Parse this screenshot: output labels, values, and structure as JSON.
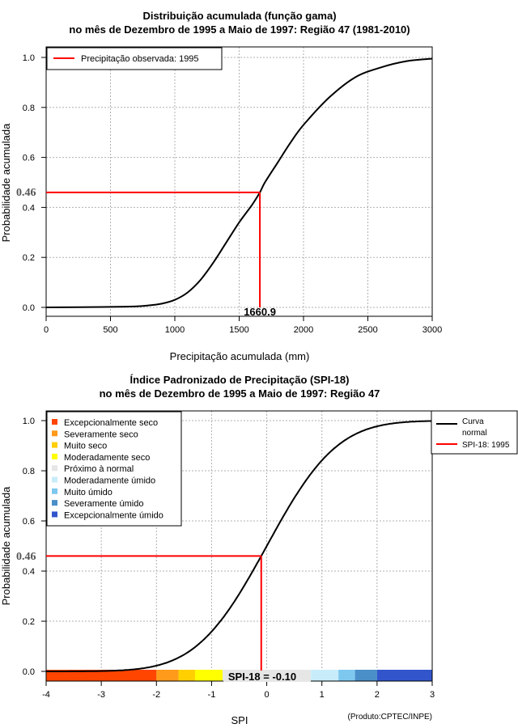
{
  "chart_data": [
    {
      "type": "line",
      "title": "Distribuição acumulada (função gama)",
      "subtitle": "no mês de Dezembro de 1995 a Maio de 1997: Região 47 (1981-2010)",
      "xlabel": "Precipitação acumulada (mm)",
      "ylabel": "Probabilidade acumulada",
      "xlim": [
        0,
        3000
      ],
      "ylim": [
        0,
        1
      ],
      "grid": true,
      "x_ticks": [
        "0",
        "500",
        "1000",
        "1500",
        "2000",
        "2500",
        "3000"
      ],
      "y_ticks": [
        "0.0",
        "0.2",
        "0.4",
        "0.6",
        "0.8",
        "1.0"
      ],
      "legend": [
        "Precipitação observada: 1995"
      ],
      "legend_position": "top-left",
      "observed_x": 1660.9,
      "observed_prob": 0.46,
      "observed_x_label": "1660.9",
      "observed_prob_label": "0.46",
      "curve": {
        "x": [
          0,
          500,
          700,
          800,
          900,
          1000,
          1100,
          1200,
          1300,
          1400,
          1500,
          1600,
          1660.9,
          1700,
          1800,
          1900,
          2000,
          2200,
          2400,
          2600,
          2800,
          3000
        ],
        "y": [
          0.0,
          0.002,
          0.004,
          0.008,
          0.015,
          0.03,
          0.06,
          0.11,
          0.18,
          0.26,
          0.34,
          0.41,
          0.46,
          0.5,
          0.58,
          0.66,
          0.73,
          0.84,
          0.92,
          0.96,
          0.985,
          0.995
        ]
      }
    },
    {
      "type": "line",
      "title": "Índice Padronizado de Precipitação (SPI-18)",
      "subtitle": "no mês de Dezembro de 1995 a Maio de 1997: Região 47",
      "xlabel": "SPI",
      "ylabel": "Probabilidade acumulada",
      "xlim": [
        -4,
        3
      ],
      "ylim": [
        0,
        1
      ],
      "grid": true,
      "x_ticks": [
        "-4",
        "-3",
        "-2",
        "-1",
        "0",
        "1",
        "2",
        "3"
      ],
      "y_ticks": [
        "0.0",
        "0.2",
        "0.4",
        "0.6",
        "0.8",
        "1.0"
      ],
      "legend_categories": [
        {
          "label": "Excepcionalmente seco",
          "color": "#ff4500"
        },
        {
          "label": "Severamente seco",
          "color": "#ff9a1a"
        },
        {
          "label": "Muito seco",
          "color": "#ffcf00"
        },
        {
          "label": "Moderadamente seco",
          "color": "#ffff00"
        },
        {
          "label": "Próximo à normal",
          "color": "#e6e6e6"
        },
        {
          "label": "Moderadamente úmido",
          "color": "#c8ecfa"
        },
        {
          "label": "Muito úmido",
          "color": "#7ec8f0"
        },
        {
          "label": "Severamente úmido",
          "color": "#4a8fc8"
        },
        {
          "label": "Excepcionalmente úmido",
          "color": "#3355cc"
        }
      ],
      "legend_series": [
        "Curva\nnormal",
        "SPI-18: 1995"
      ],
      "legend_series_lines": [
        "Curva",
        "normal",
        "SPI-18: 1995"
      ],
      "spi_value": -0.1,
      "observed_prob": 0.46,
      "observed_prob_label": "0.46",
      "spi_annotation": "SPI-18 = -0.10",
      "color_bands": [
        {
          "from": -4,
          "to": -2,
          "color": "#ff4500"
        },
        {
          "from": -2,
          "to": -1.6,
          "color": "#ff9a1a"
        },
        {
          "from": -1.6,
          "to": -1.3,
          "color": "#ffcf00"
        },
        {
          "from": -1.3,
          "to": -0.8,
          "color": "#ffff00"
        },
        {
          "from": -0.8,
          "to": 0.8,
          "color": "#e6e6e6"
        },
        {
          "from": 0.8,
          "to": 1.3,
          "color": "#c8ecfa"
        },
        {
          "from": 1.3,
          "to": 1.6,
          "color": "#7ec8f0"
        },
        {
          "from": 1.6,
          "to": 2,
          "color": "#4a8fc8"
        },
        {
          "from": 2,
          "to": 3,
          "color": "#3355cc"
        }
      ],
      "credit": "(Produto:CPTEC/INPE)"
    }
  ],
  "colors": {
    "observed_line": "#ff0000",
    "curve": "#000000",
    "grid": "#b0b0b0"
  }
}
